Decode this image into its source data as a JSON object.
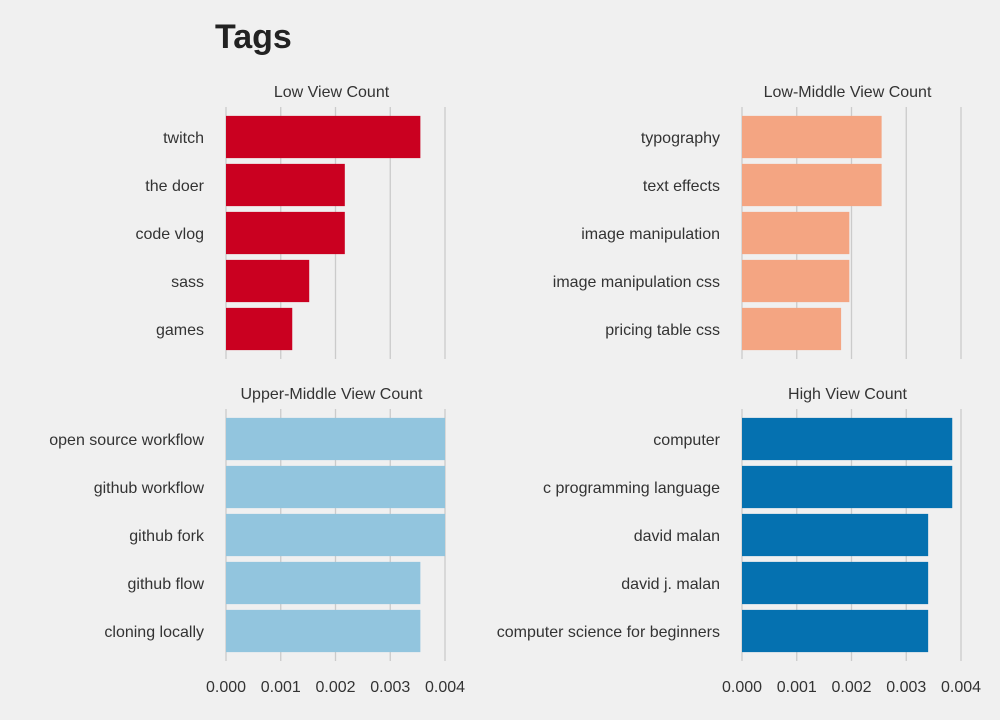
{
  "title": "Tags",
  "chart_data": [
    {
      "type": "bar",
      "orientation": "horizontal",
      "title": "Low View Count",
      "categories": [
        "twitch",
        "the doer",
        "code vlog",
        "sass",
        "games"
      ],
      "values": [
        0.00355,
        0.00217,
        0.00217,
        0.00152,
        0.00121
      ],
      "xlim": [
        0,
        0.004
      ],
      "color": "#ca0020",
      "show_xticks": false
    },
    {
      "type": "bar",
      "orientation": "horizontal",
      "title": "Low-Middle View Count",
      "categories": [
        "typography",
        "text effects",
        "image manipulation",
        "image manipulation css",
        "pricing table css"
      ],
      "values": [
        0.00255,
        0.00255,
        0.00196,
        0.00196,
        0.00181
      ],
      "xlim": [
        0,
        0.004
      ],
      "color": "#f4a582",
      "show_xticks": false
    },
    {
      "type": "bar",
      "orientation": "horizontal",
      "title": "Upper-Middle View Count",
      "categories": [
        "open source workflow",
        "github workflow",
        "github fork",
        "github flow",
        "cloning locally"
      ],
      "values": [
        0.004,
        0.004,
        0.004,
        0.00355,
        0.00355
      ],
      "xlim": [
        0,
        0.004
      ],
      "color": "#92c5de",
      "show_xticks": true
    },
    {
      "type": "bar",
      "orientation": "horizontal",
      "title": "High View Count",
      "categories": [
        "computer",
        "c programming language",
        "david malan",
        "david j. malan",
        "computer science for beginners"
      ],
      "values": [
        0.00384,
        0.00384,
        0.0034,
        0.0034,
        0.0034
      ],
      "xlim": [
        0,
        0.004
      ],
      "color": "#0571b0",
      "show_xticks": true
    }
  ],
  "xticks": [
    "0.000",
    "0.001",
    "0.002",
    "0.003",
    "0.004"
  ],
  "grid": true
}
